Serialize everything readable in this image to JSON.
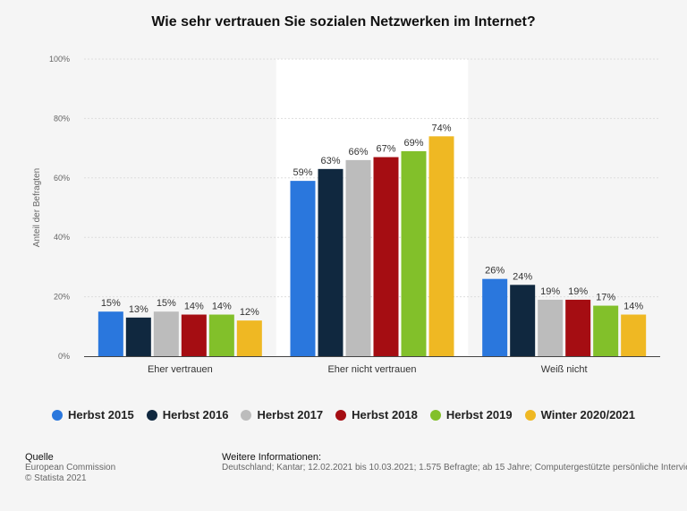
{
  "title": "Wie sehr vertrauen Sie sozialen Netzwerken im Internet?",
  "chart_data": {
    "type": "bar",
    "title": "Wie sehr vertrauen Sie sozialen Netzwerken im Internet?",
    "ylabel": "Anteil der Befragten",
    "ylim": [
      0,
      100
    ],
    "yticks": [
      "0%",
      "20%",
      "40%",
      "60%",
      "80%",
      "100%"
    ],
    "categories": [
      "Eher vertrauen",
      "Eher nicht vertrauen",
      "Weiß nicht"
    ],
    "series": [
      {
        "name": "Herbst 2015",
        "color": "#2a77dd",
        "values": [
          15,
          59,
          26
        ]
      },
      {
        "name": "Herbst 2016",
        "color": "#10283f",
        "values": [
          13,
          63,
          24
        ]
      },
      {
        "name": "Herbst 2017",
        "color": "#bcbcbc",
        "values": [
          15,
          66,
          19
        ]
      },
      {
        "name": "Herbst 2018",
        "color": "#a50d12",
        "values": [
          14,
          67,
          19
        ]
      },
      {
        "name": "Herbst 2019",
        "color": "#82c02a",
        "values": [
          14,
          69,
          17
        ]
      },
      {
        "name": "Winter 2020/2021",
        "color": "#efb823",
        "values": [
          12,
          74,
          14
        ]
      }
    ],
    "grid": true,
    "legend_position": "bottom",
    "highlighted_category": "Eher nicht vertrauen"
  },
  "footer": {
    "source_header": "Quelle",
    "source_lines": [
      "European Commission",
      "© Statista 2021"
    ],
    "info_header": "Weitere Informationen:",
    "info_text": "Deutschland; Kantar; 12.02.2021 bis 10.03.2021; 1.575 Befragte; ab 15 Jahre; Computergestützte persönliche Interviews (CAPI)"
  }
}
